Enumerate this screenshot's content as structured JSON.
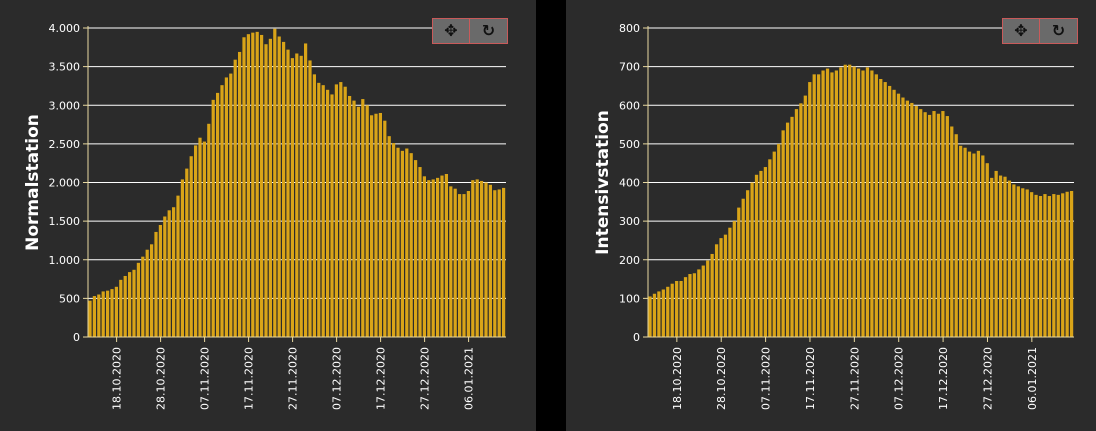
{
  "icons": {
    "pan": "pan-icon",
    "reset": "reset-icon"
  },
  "colors": {
    "bar": "#d9a418",
    "axis": "#e8d9a0",
    "grid": "#ffffff",
    "background": "#2b2b2b"
  },
  "chart_data": [
    {
      "type": "bar",
      "ylabel": "Normalstation",
      "xlabel": "",
      "ylim": [
        0,
        4000
      ],
      "yticks": [
        0,
        500,
        1000,
        1500,
        2000,
        2500,
        3000,
        3500,
        4000
      ],
      "ytick_labels": [
        "0",
        "500",
        "1.000",
        "1.500",
        "2.000",
        "2.500",
        "3.000",
        "3.500",
        "4.000"
      ],
      "xtick_labels": [
        "18.10.2020",
        "28.10.2020",
        "07.11.2020",
        "17.11.2020",
        "27.11.2020",
        "07.12.2020",
        "17.12.2020",
        "27.12.2020",
        "06.01.2021"
      ],
      "start_date": "2020-10-12",
      "tick_start_index": 6,
      "tick_step": 10,
      "grid": true,
      "values": [
        470,
        530,
        550,
        590,
        600,
        620,
        650,
        740,
        790,
        840,
        870,
        960,
        1040,
        1130,
        1200,
        1360,
        1450,
        1560,
        1640,
        1680,
        1830,
        2040,
        2180,
        2340,
        2480,
        2580,
        2530,
        2760,
        3070,
        3160,
        3260,
        3360,
        3410,
        3590,
        3690,
        3880,
        3920,
        3940,
        3950,
        3910,
        3790,
        3860,
        3990,
        3890,
        3820,
        3720,
        3610,
        3670,
        3640,
        3800,
        3580,
        3400,
        3290,
        3260,
        3200,
        3140,
        3270,
        3300,
        3240,
        3120,
        3060,
        2980,
        3080,
        3000,
        2870,
        2890,
        2900,
        2800,
        2600,
        2510,
        2450,
        2410,
        2440,
        2380,
        2290,
        2200,
        2080,
        2030,
        2040,
        2060,
        2090,
        2110,
        1950,
        1920,
        1850,
        1850,
        1890,
        2030,
        2040,
        2020,
        2000,
        1970,
        1900,
        1910,
        1930
      ]
    },
    {
      "type": "bar",
      "ylabel": "Intensivstation",
      "xlabel": "",
      "ylim": [
        0,
        800
      ],
      "yticks": [
        0,
        100,
        200,
        300,
        400,
        500,
        600,
        700,
        800
      ],
      "ytick_labels": [
        "0",
        "100",
        "200",
        "300",
        "400",
        "500",
        "600",
        "700",
        "800"
      ],
      "xtick_labels": [
        "18.10.2020",
        "28.10.2020",
        "07.11.2020",
        "17.11.2020",
        "27.11.2020",
        "07.12.2020",
        "17.12.2020",
        "27.12.2020",
        "06.01.2021"
      ],
      "start_date": "2020-10-12",
      "tick_start_index": 6,
      "tick_step": 10,
      "grid": true,
      "values": [
        105,
        112,
        118,
        123,
        130,
        138,
        145,
        145,
        155,
        163,
        165,
        175,
        185,
        198,
        215,
        240,
        256,
        265,
        283,
        300,
        335,
        358,
        380,
        400,
        420,
        430,
        440,
        460,
        480,
        500,
        535,
        555,
        570,
        590,
        605,
        625,
        660,
        680,
        680,
        690,
        695,
        685,
        690,
        698,
        705,
        705,
        700,
        695,
        690,
        698,
        690,
        680,
        668,
        660,
        650,
        640,
        630,
        620,
        612,
        606,
        598,
        590,
        582,
        575,
        585,
        578,
        585,
        572,
        545,
        525,
        495,
        490,
        480,
        475,
        482,
        470,
        450,
        412,
        430,
        418,
        415,
        405,
        395,
        390,
        385,
        382,
        375,
        368,
        365,
        370,
        365,
        370,
        368,
        372,
        376,
        378
      ]
    }
  ]
}
